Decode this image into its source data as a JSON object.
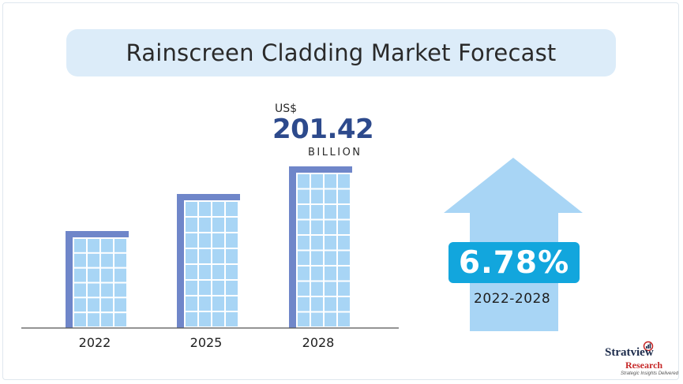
{
  "title": "Rainscreen Cladding Market Forecast",
  "value_annotation": {
    "currency": "US$",
    "value": "201.42",
    "unit": "BILLION"
  },
  "cagr": {
    "value": "6.78%",
    "period": "2022-2028"
  },
  "logo": {
    "name": "Stratview",
    "sub": "Research",
    "tagline": "Strategic Insights Delivered"
  },
  "colors": {
    "title_background": "#dcecf9",
    "building_frame": "#6f86c9",
    "building_glass": "#a8d5f5",
    "value_text": "#2d4a8c",
    "arrow_fill": "#a8d5f5",
    "cagr_box": "#12a6dd"
  },
  "chart_data": {
    "type": "bar",
    "categories": [
      "2022",
      "2025",
      "2028"
    ],
    "values": [
      null,
      null,
      201.42
    ],
    "ylim": [
      0,
      220
    ],
    "grid": false
  }
}
